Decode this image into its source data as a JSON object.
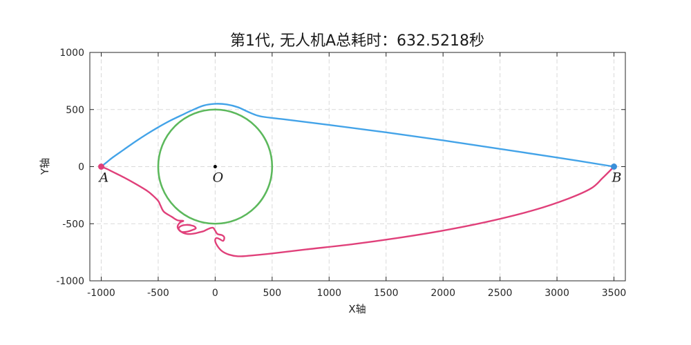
{
  "chart_data": {
    "type": "line",
    "title": "第1代, 无人机A总耗时：632.5218秒",
    "xlabel": "X轴",
    "ylabel": "Y轴",
    "xlim": [
      -1100,
      3600
    ],
    "ylim": [
      -1000,
      1000
    ],
    "xticks": [
      -1000,
      -500,
      0,
      500,
      1000,
      1500,
      2000,
      2500,
      3000,
      3500
    ],
    "yticks": [
      -1000,
      -500,
      0,
      500,
      1000
    ],
    "grid": true,
    "circle": {
      "name": "",
      "center": [
        0,
        0
      ],
      "radius": 500,
      "color": "#5cb85c"
    },
    "points": [
      {
        "label": "A",
        "x": -1000,
        "y": 0,
        "color": "#e0407a"
      },
      {
        "label": "O",
        "x": 0,
        "y": 0,
        "color": "#000000"
      },
      {
        "label": "B",
        "x": 3500,
        "y": 0,
        "color": "#3a8fd9"
      }
    ],
    "series": [
      {
        "color": "#43a3e8",
        "x": [
          -1000,
          -950,
          -900,
          -800,
          -700,
          -600,
          -500,
          -400,
          -300,
          -200,
          -100,
          0,
          100,
          200,
          300,
          400,
          600,
          1000,
          1500,
          2000,
          2500,
          3000,
          3500
        ],
        "y": [
          0,
          40,
          80,
          150,
          220,
          285,
          345,
          400,
          448,
          495,
          535,
          550,
          545,
          520,
          475,
          440,
          415,
          365,
          300,
          230,
          155,
          80,
          0
        ]
      },
      {
        "color": "#e0407a",
        "x": [
          -1000,
          -950,
          -900,
          -800,
          -700,
          -600,
          -550,
          -500,
          -480,
          -450,
          -380,
          -330,
          -280,
          -310,
          -330,
          -300,
          -250,
          -200,
          -170,
          -190,
          -250,
          -300,
          -320,
          -290,
          -240,
          -180,
          -140,
          -100,
          -60,
          -20,
          0,
          20,
          60,
          80,
          70,
          40,
          10,
          0,
          20,
          60,
          120,
          200,
          300,
          500,
          800,
          1200,
          1600,
          2000,
          2400,
          2800,
          3100,
          3300,
          3400,
          3500
        ],
        "y": [
          0,
          -20,
          -45,
          -95,
          -150,
          -210,
          -250,
          -300,
          -340,
          -395,
          -440,
          -470,
          -475,
          -490,
          -530,
          -570,
          -570,
          -555,
          -540,
          -520,
          -510,
          -520,
          -545,
          -575,
          -590,
          -585,
          -575,
          -565,
          -545,
          -535,
          -560,
          -590,
          -600,
          -620,
          -650,
          -635,
          -625,
          -650,
          -695,
          -740,
          -770,
          -785,
          -780,
          -760,
          -725,
          -680,
          -625,
          -560,
          -480,
          -380,
          -280,
          -190,
          -100,
          0
        ]
      }
    ]
  }
}
